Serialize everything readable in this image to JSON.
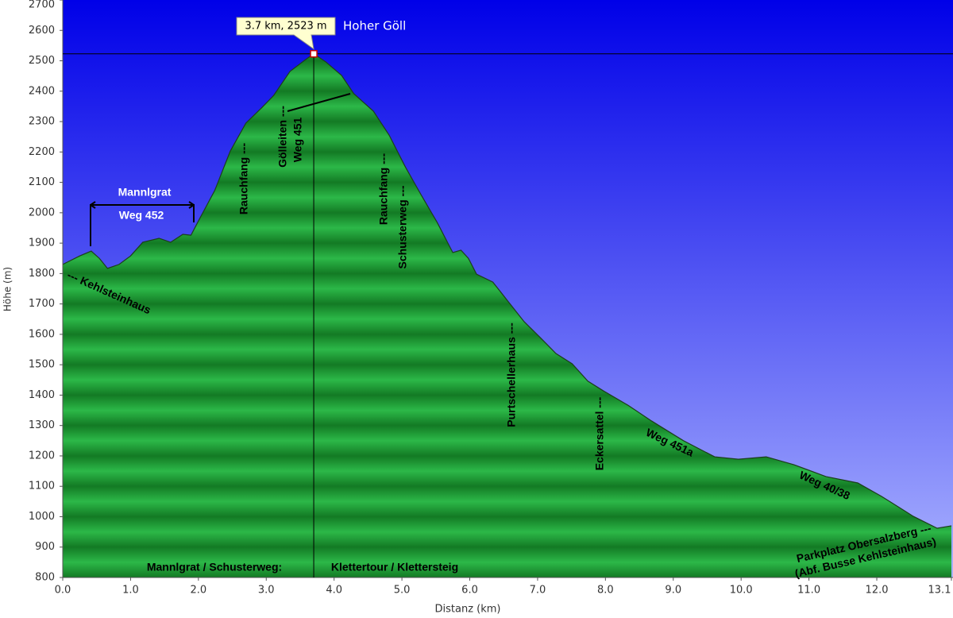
{
  "chart_data": {
    "type": "area",
    "x_label": "Distanz  (km)",
    "y_label": "Höhe (m)",
    "x": [
      0.0,
      0.25,
      0.42,
      0.54,
      0.66,
      0.83,
      1.0,
      1.18,
      1.42,
      1.59,
      1.77,
      1.89,
      2.0,
      2.24,
      2.47,
      2.7,
      2.94,
      3.11,
      3.35,
      3.58,
      3.7,
      3.88,
      4.11,
      4.29,
      4.58,
      4.81,
      5.05,
      5.28,
      5.52,
      5.75,
      5.87,
      5.98,
      6.1,
      6.34,
      6.57,
      6.8,
      7.04,
      7.27,
      7.51,
      7.74,
      7.97,
      8.33,
      8.68,
      9.15,
      9.61,
      9.96,
      10.37,
      10.78,
      11.25,
      11.72,
      12.07,
      12.54,
      12.89,
      13.1
    ],
    "series": [
      {
        "name": "Höhe",
        "color": "#22a83a",
        "values": [
          1830,
          1858,
          1874,
          1850,
          1817,
          1830,
          1858,
          1903,
          1916,
          1903,
          1929,
          1926,
          1973,
          2073,
          2203,
          2295,
          2347,
          2386,
          2465,
          2504,
          2523,
          2496,
          2452,
          2392,
          2334,
          2256,
          2151,
          2060,
          1968,
          1869,
          1877,
          1850,
          1798,
          1772,
          1707,
          1642,
          1589,
          1537,
          1503,
          1446,
          1414,
          1367,
          1315,
          1250,
          1197,
          1189,
          1197,
          1171,
          1132,
          1111,
          1067,
          1001,
          962,
          970
        ]
      }
    ],
    "xlim": [
      0,
      13.1
    ],
    "ylim": [
      800,
      2700
    ],
    "xticks": [
      {
        "value": 0,
        "label": "0.0"
      },
      {
        "value": 1,
        "label": "1.0"
      },
      {
        "value": 2,
        "label": "2.0"
      },
      {
        "value": 3,
        "label": "3.0"
      },
      {
        "value": 4,
        "label": "4.0"
      },
      {
        "value": 5,
        "label": "5.0"
      },
      {
        "value": 6,
        "label": "6.0"
      },
      {
        "value": 7,
        "label": "7.0"
      },
      {
        "value": 8,
        "label": "8.0"
      },
      {
        "value": 9,
        "label": "9.0"
      },
      {
        "value": 10,
        "label": "10.0"
      },
      {
        "value": 11,
        "label": "11.0"
      },
      {
        "value": 12,
        "label": "12.0"
      },
      {
        "value": 13.1,
        "label": "13.1"
      }
    ],
    "yticks": [
      800,
      900,
      1000,
      1100,
      1200,
      1300,
      1400,
      1500,
      1600,
      1700,
      1800,
      1900,
      2000,
      2100,
      2200,
      2300,
      2400,
      2500,
      2600,
      2700
    ],
    "highlight": {
      "x": 3.7,
      "y": 2523,
      "label": "3.7 km, 2523 m",
      "name": "Hoher Göll"
    },
    "annotations": [
      "Mannlgrat",
      "Weg 452",
      "--- Kehlsteinhaus",
      "Rauchfang ---",
      "Gölleiten ---",
      "Weg 451",
      "Rauchfang ---",
      "Schusterweg ---",
      "Purtschellerhaus ---",
      "Eckersattel ---",
      "Weg 451a",
      "Weg 40/38",
      "Parkplatz Obersalzberg ---",
      "(Abf. Busse Kehlsteinhaus)",
      "Mannlgrat / Schusterweg:",
      "Klettertour / Klettersteig"
    ]
  }
}
